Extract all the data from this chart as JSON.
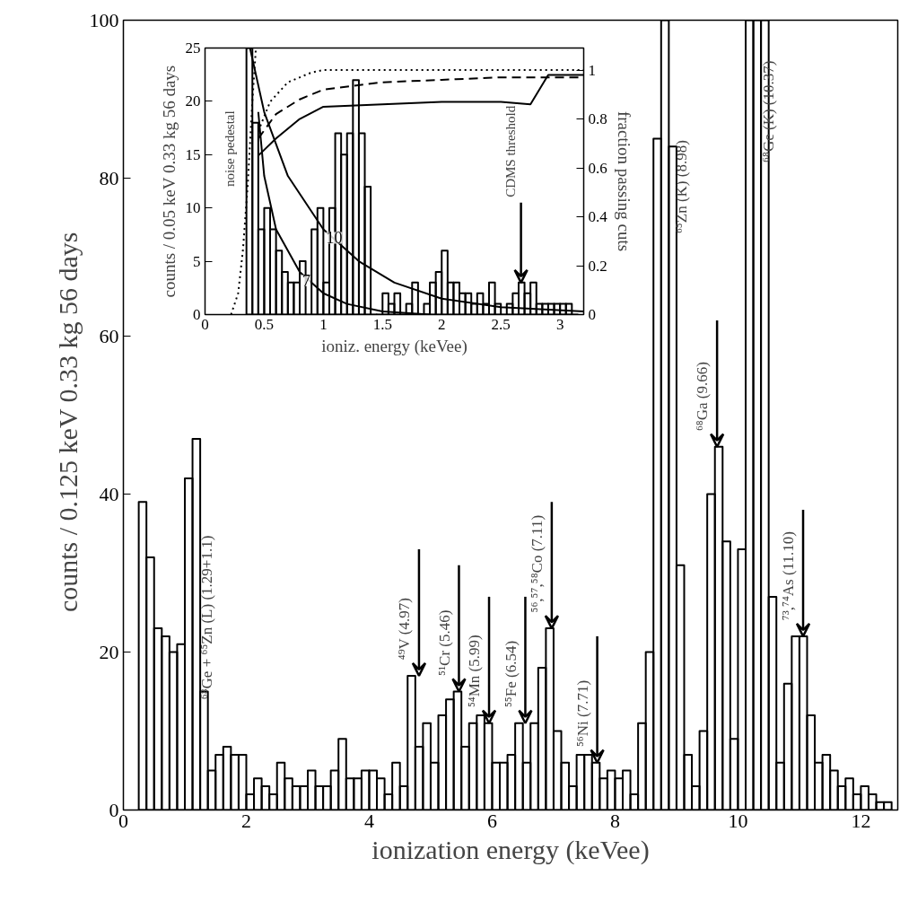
{
  "chart_data": [
    {
      "type": "histogram",
      "xlabel": "ionization energy (keVee)",
      "ylabel": "counts / 0.125 keV  0.33 kg  56 days",
      "color": "#000000",
      "bins": [
        0.25,
        0.375,
        0.5,
        0.625,
        0.75,
        0.875,
        1.0,
        1.125,
        1.25,
        1.375,
        1.5,
        1.625,
        1.75,
        1.875,
        2.0,
        2.125,
        2.25,
        2.375,
        2.5,
        2.625,
        2.75,
        2.875,
        3.0,
        3.125,
        3.25,
        3.375,
        3.5,
        3.625,
        3.75,
        3.875,
        4.0,
        4.125,
        4.25,
        4.375,
        4.5,
        4.625,
        4.75,
        4.875,
        5.0,
        5.125,
        5.25,
        5.375,
        5.5,
        5.625,
        5.75,
        5.875,
        6.0,
        6.125,
        6.25,
        6.375,
        6.5,
        6.625,
        6.75,
        6.875,
        7.0,
        7.125,
        7.25,
        7.375,
        7.5,
        7.625,
        7.75,
        7.875,
        8.0,
        8.125,
        8.25,
        8.375,
        8.5,
        8.625,
        8.75,
        8.875,
        9.0,
        9.125,
        9.25,
        9.375,
        9.5,
        9.625,
        9.75,
        9.875,
        10.0,
        10.125,
        10.25,
        10.375,
        10.5,
        10.625,
        10.75,
        10.875,
        11.0,
        11.125,
        11.25,
        11.375,
        11.5,
        11.625,
        11.75,
        11.875,
        12.0,
        12.125,
        12.25,
        12.375,
        12.5
      ],
      "values": [
        39,
        32,
        23,
        22,
        20,
        21,
        42,
        47,
        15,
        5,
        7,
        8,
        7,
        7,
        2,
        4,
        3,
        2,
        6,
        4,
        3,
        3,
        5,
        3,
        3,
        5,
        9,
        4,
        4,
        5,
        5,
        4,
        2,
        6,
        3,
        17,
        8,
        11,
        6,
        12,
        14,
        15,
        8,
        11,
        12,
        11,
        6,
        6,
        7,
        11,
        6,
        11,
        18,
        23,
        10,
        6,
        3,
        7,
        7,
        6,
        4,
        5,
        4,
        5,
        2,
        11,
        20,
        85,
        100,
        84,
        31,
        7,
        3,
        10,
        40,
        46,
        34,
        9,
        33,
        100,
        100,
        100,
        27,
        6,
        16,
        22,
        22,
        12,
        6,
        7,
        5,
        3,
        4,
        2,
        3,
        2,
        1,
        1
      ],
      "xlim": [
        0,
        12.6
      ],
      "ylim": [
        0,
        100
      ],
      "xticks": [
        0,
        2,
        4,
        6,
        8,
        10,
        12
      ],
      "yticks": [
        0,
        20,
        40,
        60,
        80,
        100
      ],
      "annotations": [
        "⁶⁸Ge + ⁶⁵Zn (L) (1.29+1.1)",
        "⁶⁵Zn (K) (8.98)",
        "⁶⁸Ge (K) (10.37)",
        {
          "text": "⁴⁹V (4.97)",
          "x": 4.81,
          "y": 17
        },
        {
          "text": "⁵¹Cr (5.46)",
          "x": 5.46,
          "y": 15
        },
        {
          "text": "⁵⁴Mn (5.99)",
          "x": 5.95,
          "y": 11
        },
        {
          "text": "⁵⁵Fe (6.54)",
          "x": 6.54,
          "y": 11
        },
        {
          "text": "⁵⁶,⁵⁷,⁵⁸Co (7.11)",
          "x": 6.97,
          "y": 23
        },
        {
          "text": "⁵⁶Ni (7.71)",
          "x": 7.71,
          "y": 6
        },
        {
          "text": "⁶⁸Ga (9.66)",
          "x": 9.66,
          "y": 46
        },
        {
          "text": "⁷³,⁷⁴As (11.10)",
          "x": 11.06,
          "y": 22
        }
      ]
    },
    {
      "type": "histogram",
      "xlabel": "ioniz. energy (keVee)",
      "ylabel": "counts / 0.05 keV 0.33 kg 56 days",
      "y2label": "fraction passing cuts",
      "color": "#000000",
      "bins": [
        0.35,
        0.4,
        0.45,
        0.5,
        0.55,
        0.6,
        0.65,
        0.7,
        0.75,
        0.8,
        0.85,
        0.9,
        0.95,
        1.0,
        1.05,
        1.1,
        1.15,
        1.2,
        1.25,
        1.3,
        1.35,
        1.4,
        1.45,
        1.5,
        1.55,
        1.6,
        1.65,
        1.7,
        1.75,
        1.8,
        1.85,
        1.9,
        1.95,
        2.0,
        2.05,
        2.1,
        2.15,
        2.2,
        2.25,
        2.3,
        2.35,
        2.4,
        2.45,
        2.5,
        2.55,
        2.6,
        2.65,
        2.7,
        2.75,
        2.8,
        2.85,
        2.9,
        2.95,
        3.0,
        3.05,
        3.1,
        3.15
      ],
      "values": [
        25,
        18,
        8,
        10,
        8,
        6,
        4,
        3,
        3,
        5,
        0,
        8,
        10,
        3,
        10,
        17,
        15,
        17,
        22,
        17,
        12,
        0,
        0,
        2,
        1,
        2,
        0,
        1,
        3,
        0,
        1,
        3,
        4,
        6,
        3,
        3,
        2,
        2,
        1,
        2,
        1,
        3,
        1,
        0,
        1,
        2,
        3,
        2,
        3,
        1,
        1,
        1,
        1,
        1,
        1,
        0
      ],
      "series": [
        {
          "type": "line",
          "color": "#000000",
          "line_style": "dotted",
          "x": [
            0.22,
            0.28,
            0.32,
            0.36,
            0.4,
            0.43
          ],
          "values": [
            0,
            2,
            6,
            12,
            20,
            25
          ]
        },
        {
          "type": "line",
          "axis": "y2",
          "color": "#000000",
          "line_style": "dotted",
          "x": [
            0.45,
            0.55,
            0.7,
            0.9,
            1.0,
            3.2
          ],
          "values": [
            0.75,
            0.87,
            0.95,
            0.99,
            1.0,
            1.0
          ]
        },
        {
          "type": "line",
          "axis": "y2",
          "color": "#000000",
          "line_style": "dashed",
          "x": [
            0.45,
            0.6,
            0.8,
            1.0,
            1.5,
            2.0,
            2.5,
            3.2
          ],
          "values": [
            0.72,
            0.82,
            0.88,
            0.92,
            0.95,
            0.96,
            0.97,
            0.97
          ]
        },
        {
          "type": "line",
          "axis": "y2",
          "color": "#000000",
          "line_style": "solid",
          "x": [
            0.45,
            0.6,
            0.8,
            1.0,
            1.5,
            2.0,
            2.5,
            2.75,
            2.9,
            3.2
          ],
          "values": [
            0.65,
            0.72,
            0.8,
            0.85,
            0.86,
            0.87,
            0.87,
            0.86,
            0.98,
            0.98
          ]
        },
        {
          "type": "line",
          "name": "7",
          "color": "#000000",
          "line_style": "solid",
          "x": [
            0.45,
            0.5,
            0.6,
            0.8,
            1.0,
            1.2,
            1.5,
            1.9
          ],
          "values": [
            19,
            13,
            8,
            4,
            2,
            1,
            0.3,
            0
          ]
        },
        {
          "type": "line",
          "name": "10",
          "color": "#000000",
          "line_style": "solid",
          "x": [
            0.38,
            0.5,
            0.7,
            1.0,
            1.3,
            1.6,
            2.0,
            2.5,
            3.2
          ],
          "values": [
            25,
            19,
            13,
            8,
            5,
            3,
            1.5,
            0.7,
            0.3
          ]
        }
      ],
      "xlim": [
        0,
        3.2
      ],
      "ylim": [
        0,
        25
      ],
      "y2lim": [
        0,
        1.09
      ],
      "xticks": [
        0,
        0.5,
        1,
        1.5,
        2,
        2.5,
        3
      ],
      "yticks": [
        0,
        5,
        10,
        15,
        20,
        25
      ],
      "y2ticks": [
        0,
        0.2,
        0.4,
        0.6,
        0.8,
        1
      ],
      "annotations": [
        "noise pedestal",
        {
          "text": "CDMS threshold",
          "x": 2.67,
          "y": 3
        }
      ]
    }
  ]
}
